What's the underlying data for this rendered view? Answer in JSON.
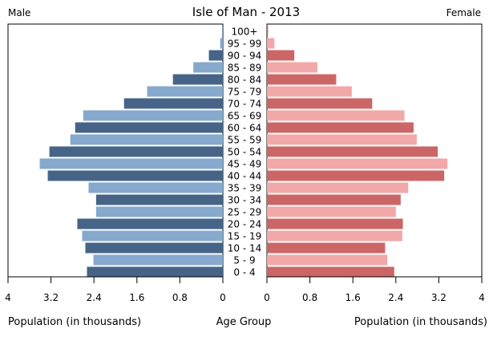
{
  "chart_data": {
    "type": "bar",
    "title": "Isle of Man - 2013",
    "left_header": "Male",
    "right_header": "Female",
    "xlabel_left": "Population (in thousands)",
    "xlabel_center": "Age Group",
    "xlabel_right": "Population (in thousands)",
    "xlim": [
      0,
      4
    ],
    "ticks": [
      "4",
      "3.2",
      "2.4",
      "1.6",
      "0.8",
      "0",
      "0",
      "0.8",
      "1.6",
      "2.4",
      "3.2",
      "4"
    ],
    "tick_values_left": [
      4,
      3.2,
      2.4,
      1.6,
      0.8,
      0
    ],
    "tick_values_right": [
      0,
      0.8,
      1.6,
      2.4,
      3.2,
      4
    ],
    "categories": [
      "100+",
      "95 - 99",
      "90 - 94",
      "85 - 89",
      "80 - 84",
      "75 - 79",
      "70 - 74",
      "65 - 69",
      "60 - 64",
      "55 - 59",
      "50 - 54",
      "45 - 49",
      "40 - 44",
      "35 - 39",
      "30 - 34",
      "25 - 29",
      "20 - 24",
      "15 - 19",
      "10 - 14",
      "5 - 9",
      "0 - 4"
    ],
    "series": [
      {
        "name": "Male",
        "values": [
          0.01,
          0.05,
          0.26,
          0.55,
          0.93,
          1.41,
          1.84,
          2.6,
          2.75,
          2.84,
          3.23,
          3.41,
          3.26,
          2.5,
          2.36,
          2.36,
          2.71,
          2.62,
          2.56,
          2.41,
          2.53
        ]
      },
      {
        "name": "Female",
        "values": [
          0.02,
          0.14,
          0.51,
          0.94,
          1.29,
          1.58,
          1.96,
          2.56,
          2.73,
          2.79,
          3.18,
          3.36,
          3.3,
          2.63,
          2.49,
          2.4,
          2.53,
          2.52,
          2.2,
          2.24,
          2.37
        ]
      }
    ],
    "colors": {
      "male_dark": "#456487",
      "male_light": "#87a8cd",
      "female_dark": "#cc6666",
      "female_light": "#f2a8a8"
    }
  }
}
